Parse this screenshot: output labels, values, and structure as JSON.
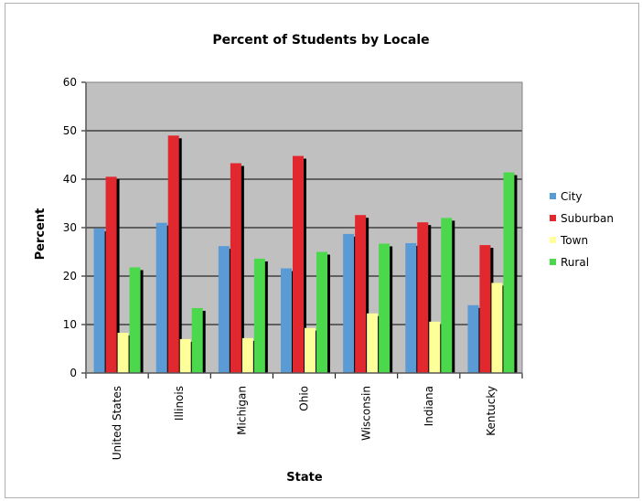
{
  "chart_data": {
    "type": "bar",
    "title": "Percent of Students by Locale",
    "xlabel": "State",
    "ylabel": "Percent",
    "ylim": [
      0,
      60
    ],
    "yticks": [
      0,
      10,
      20,
      30,
      40,
      50,
      60
    ],
    "grid": true,
    "legend_position": "right",
    "plot_background": "#c0c0c0",
    "categories": [
      "United States",
      "Illinois",
      "Michigan",
      "Ohio",
      "Wisconsin",
      "Indiana",
      "Kentucky"
    ],
    "series": [
      {
        "name": "City",
        "color": "#5b9bd5",
        "values": [
          29.8,
          31,
          26.2,
          21.6,
          28.7,
          26.8,
          14
        ]
      },
      {
        "name": "Suburban",
        "color": "#e0282e",
        "values": [
          40.5,
          49,
          43.3,
          44.8,
          32.6,
          31.1,
          26.4
        ]
      },
      {
        "name": "Town",
        "color": "#ffff99",
        "values": [
          8.3,
          7,
          7.2,
          9.3,
          12.3,
          10.6,
          18.6
        ]
      },
      {
        "name": "Rural",
        "color": "#4cd84c",
        "values": [
          21.8,
          13.4,
          23.6,
          25,
          26.7,
          32,
          41.4
        ]
      }
    ]
  }
}
